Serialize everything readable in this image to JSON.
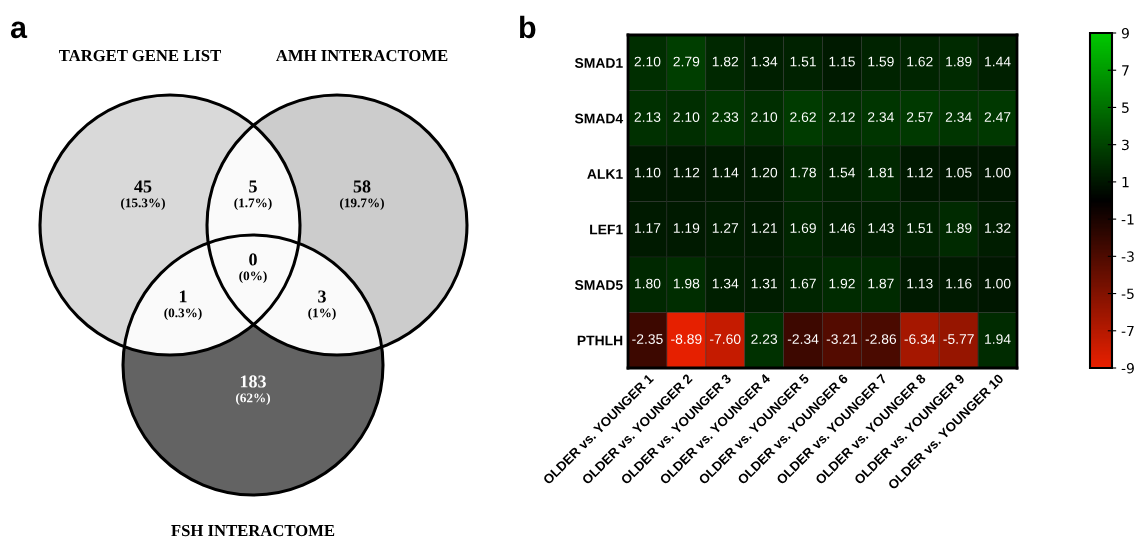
{
  "chart_data": [
    {
      "type": "other",
      "title": "a",
      "annotations": [
        "TARGET GENE LIST",
        "AMH INTERACTOME",
        "FSH INTERACTOME",
        "45",
        "(15.3%)",
        "58",
        "(19.7%)",
        "183",
        "(62%)",
        "5",
        "(1.7%)",
        "1",
        "(0.3%)",
        "3",
        "(1%)",
        "0",
        "(0%)"
      ],
      "colors": [
        "#d9d9d9",
        "#cccccc",
        "#636363",
        "#fafafa",
        "#fafafa",
        "#fafafa",
        "#fafafa"
      ]
    },
    {
      "type": "heatmap",
      "title": "b",
      "categories": [
        "OLDER vs. YOUNGER 1",
        "OLDER vs. YOUNGER 2",
        "OLDER vs. YOUNGER 3",
        "OLDER vs. YOUNGER 4",
        "OLDER vs. YOUNGER 5",
        "OLDER vs. YOUNGER 6",
        "OLDER vs. YOUNGER 7",
        "OLDER vs. YOUNGER 8",
        "OLDER vs. YOUNGER 9",
        "OLDER vs. YOUNGER 10"
      ],
      "y_categories": [
        "SMAD1",
        "SMAD4",
        "ALK1",
        "LEF1",
        "SMAD5",
        "PTHLH"
      ],
      "cells": [
        [
          2.1,
          2.79,
          1.82,
          1.34,
          1.51,
          1.15,
          1.59,
          1.62,
          1.89,
          1.44
        ],
        [
          2.13,
          2.1,
          2.33,
          2.1,
          2.62,
          2.12,
          2.34,
          2.57,
          2.34,
          2.47
        ],
        [
          1.1,
          1.12,
          1.14,
          1.2,
          1.78,
          1.54,
          1.81,
          1.12,
          1.05,
          1.0
        ],
        [
          1.17,
          1.19,
          1.27,
          1.21,
          1.69,
          1.46,
          1.43,
          1.51,
          1.89,
          1.32
        ],
        [
          1.8,
          1.98,
          1.34,
          1.31,
          1.67,
          1.92,
          1.87,
          1.13,
          1.16,
          1.0
        ],
        [
          -2.35,
          -8.89,
          -7.6,
          2.23,
          -2.34,
          -3.21,
          -2.86,
          -6.34,
          -5.77,
          1.94
        ]
      ],
      "cell_labels": [
        [
          "2.10",
          "2.79",
          "1.82",
          "1.34",
          "1.51",
          "1.15",
          "1.59",
          "1.62",
          "1.89",
          "1.44"
        ],
        [
          "2.13",
          "2.10",
          "2.33",
          "2.10",
          "2.62",
          "2.12",
          "2.34",
          "2.57",
          "2.34",
          "2.47"
        ],
        [
          "1.10",
          "1.12",
          "1.14",
          "1.20",
          "1.78",
          "1.54",
          "1.81",
          "1.12",
          "1.05",
          "1.00"
        ],
        [
          "1.17",
          "1.19",
          "1.27",
          "1.21",
          "1.69",
          "1.46",
          "1.43",
          "1.51",
          "1.89",
          "1.32"
        ],
        [
          "1.80",
          "1.98",
          "1.34",
          "1.31",
          "1.67",
          "1.92",
          "1.87",
          "1.13",
          "1.16",
          "1.00"
        ],
        [
          "-2.35",
          "-8.89",
          "-7.60",
          "2.23",
          "-2.34",
          "-3.21",
          "-2.86",
          "-6.34",
          "-5.77",
          "1.94"
        ]
      ],
      "clim": [
        -9,
        9
      ],
      "cticks": [
        9,
        7,
        5,
        3,
        1,
        -1,
        -3,
        -5,
        -7,
        -9
      ]
    }
  ]
}
